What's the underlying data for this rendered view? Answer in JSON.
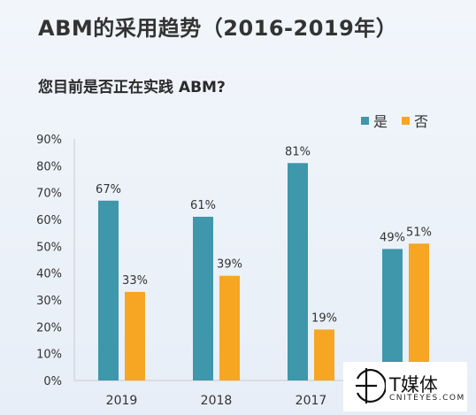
{
  "title": "ABM的采用趋势（2016-2019年）",
  "question": "您目前是否正在实践 ABM?",
  "colors": {
    "yes": "#3e97ab",
    "no": "#f6a623",
    "axis": "#c8ccd2",
    "text": "#333333"
  },
  "watermark": {
    "cn": "T媒体",
    "en": "CNITEYES.COM"
  },
  "chart_data": {
    "type": "bar",
    "categories": [
      "2019",
      "2018",
      "2017",
      ""
    ],
    "series": [
      {
        "name": "是",
        "values": [
          67,
          61,
          81,
          49
        ],
        "labels": [
          "67%",
          "61%",
          "81%",
          "49%"
        ]
      },
      {
        "name": "否",
        "values": [
          33,
          39,
          19,
          51
        ],
        "labels": [
          "33%",
          "39%",
          "19%",
          "51%"
        ]
      }
    ],
    "y_ticks": [
      "0%",
      "10%",
      "20%",
      "30%",
      "40%",
      "50%",
      "60%",
      "70%",
      "80%",
      "90%"
    ],
    "ylim": [
      0,
      90
    ],
    "grid": false,
    "legend": "top-right"
  }
}
